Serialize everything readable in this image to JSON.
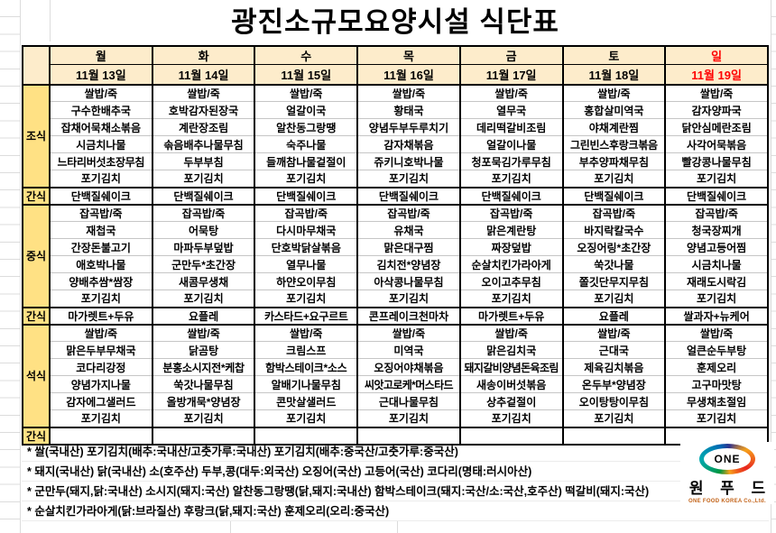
{
  "title": "광진소규모요양시설 식단표",
  "meal_labels": {
    "breakfast": "조식",
    "snack": "간식",
    "lunch": "중식",
    "dinner": "석식"
  },
  "days": [
    {
      "weekday": "월",
      "date": "11월 13일",
      "highlight": false,
      "breakfast": [
        "쌀밥/죽",
        "구수한배추국",
        "잡채어묵채소볶음",
        "시금치나물",
        "느타리버섯초장무침",
        "포기김치"
      ],
      "morning_snack": "단백질쉐이크",
      "lunch": [
        "잡곡밥/죽",
        "재첩국",
        "간장돈불고기",
        "애호박나물",
        "양배추쌈*쌈장",
        "포기김치"
      ],
      "afternoon_snack": "마가렛트+두유",
      "dinner": [
        "쌀밥/죽",
        "맑은두부무채국",
        "코다리강정",
        "양념가지나물",
        "감자에그샐러드",
        "포기김치"
      ],
      "evening_snack": ""
    },
    {
      "weekday": "화",
      "date": "11월 14일",
      "highlight": false,
      "breakfast": [
        "쌀밥/죽",
        "호박감자된장국",
        "계란장조림",
        "솎음배추나물무침",
        "두부부침",
        "포기김치"
      ],
      "morning_snack": "단백질쉐이크",
      "lunch": [
        "잡곡밥/죽",
        "어묵탕",
        "마파두부덮밥",
        "군만두*초간장",
        "새콤무생채",
        "포기김치"
      ],
      "afternoon_snack": "요플레",
      "dinner": [
        "쌀밥/죽",
        "닭곰탕",
        "분홍소시지전*케찹",
        "쑥갓나물무침",
        "올방개묵*양념장",
        "포기김치"
      ],
      "evening_snack": ""
    },
    {
      "weekday": "수",
      "date": "11월 15일",
      "highlight": false,
      "breakfast": [
        "쌀밥/죽",
        "얼갈이국",
        "알찬동그랑땡",
        "숙주나물",
        "들깨참나물겉절이",
        "포기김치"
      ],
      "morning_snack": "단백질쉐이크",
      "lunch": [
        "잡곡밥/죽",
        "다시마무채국",
        "단호박닭살볶음",
        "열무나물",
        "하얀오이무침",
        "포기김치"
      ],
      "afternoon_snack": "카스타드+요구르트",
      "dinner": [
        "쌀밥/죽",
        "크림스프",
        "함박스테이크*소스",
        "알배기나물무침",
        "콘맛살샐러드",
        "포기김치"
      ],
      "evening_snack": ""
    },
    {
      "weekday": "목",
      "date": "11월 16일",
      "highlight": false,
      "breakfast": [
        "쌀밥/죽",
        "황태국",
        "양념두부두루치기",
        "감자채볶음",
        "쥬키니호박나물",
        "포기김치"
      ],
      "morning_snack": "단백질쉐이크",
      "lunch": [
        "잡곡밥/죽",
        "유채국",
        "맑은대구찜",
        "김치전*양념장",
        "아삭콩나물무침",
        "포기김치"
      ],
      "afternoon_snack": "콘프레이크천마차",
      "dinner": [
        "쌀밥/죽",
        "미역국",
        "오징어야채볶음",
        "씨앗고로케*머스타드",
        "근대나물무침",
        "포기김치"
      ],
      "evening_snack": ""
    },
    {
      "weekday": "금",
      "date": "11월 17일",
      "highlight": false,
      "breakfast": [
        "쌀밥/죽",
        "열무국",
        "데리떡갈비조림",
        "얼갈이나물",
        "청포묵김가루무침",
        "포기김치"
      ],
      "morning_snack": "단백질쉐이크",
      "lunch": [
        "잡곡밥/죽",
        "맑은계란탕",
        "짜장덮밥",
        "순살치킨가라아게",
        "오이고추무침",
        "포기김치"
      ],
      "afternoon_snack": "마가렛트+두유",
      "dinner": [
        "쌀밥/죽",
        "맑은김치국",
        "돼지갈비양념돈육조림",
        "새송이버섯볶음",
        "상추겉절이",
        "포기김치"
      ],
      "evening_snack": ""
    },
    {
      "weekday": "토",
      "date": "11월 18일",
      "highlight": false,
      "breakfast": [
        "쌀밥/죽",
        "홍합살미역국",
        "야채계란찜",
        "그린빈스후랑크볶음",
        "부추양파채무침",
        "포기김치"
      ],
      "morning_snack": "단백질쉐이크",
      "lunch": [
        "잡곡밥/죽",
        "바지락칼국수",
        "오징어링*초간장",
        "쑥갓나물",
        "쫄깃단무지무침",
        "포기김치"
      ],
      "afternoon_snack": "요플레",
      "dinner": [
        "쌀밥/죽",
        "근대국",
        "제육김치볶음",
        "온두부*양념장",
        "오이탕탕이무침",
        "포기김치"
      ],
      "evening_snack": ""
    },
    {
      "weekday": "일",
      "date": "11월 19일",
      "highlight": true,
      "breakfast": [
        "쌀밥/죽",
        "감자양파국",
        "닭안심메란조림",
        "사각어묵볶음",
        "빨강콩나물무침",
        "포기김치"
      ],
      "morning_snack": "단백질쉐이크",
      "lunch": [
        "잡곡밥/죽",
        "청국장찌개",
        "양념고등어찜",
        "시금치나물",
        "재래도시락김",
        "포기김치"
      ],
      "afternoon_snack": "쌀과자+뉴케어",
      "dinner": [
        "쌀밥/죽",
        "얼큰순두부탕",
        "훈제오리",
        "고구마맛탕",
        "무생채초절임",
        "포기김치"
      ],
      "evening_snack": ""
    }
  ],
  "footnotes": [
    "* 쌀(국내산) 포기김치(배추:국내산/고춧가루:국내산) 포기김치(배추:중국산/고춧가루:중국산)",
    "* 돼지(국내산) 닭(국내산) 소(호주산) 두부,콩(대두:외국산) 오징어(국산) 고등어(국산) 코다리(명태:러시아산)",
    "* 군만두(돼지,닭:국내산) 소시지(돼지:국산) 알찬동그랑땡(닭,돼지:국내산) 함박스테이크(돼지:국산/소:국산,호주산) 떡갈비(돼지:국산)",
    "* 순살치킨가라아게(닭:브라질산) 후랑크(닭,돼지:국산) 훈제오리(오리:중국산)"
  ],
  "logo": {
    "badge": "ONE",
    "name": "원 푸 드",
    "caption": "ONE FOOD KOREA Co.,Ltd."
  },
  "colors": {
    "header_bg": "#fdeccb",
    "category_bg": "#ffe184",
    "sunday_red": "#ff0000",
    "grid_light": "#c6c6c6",
    "border_dark": "#000000"
  }
}
